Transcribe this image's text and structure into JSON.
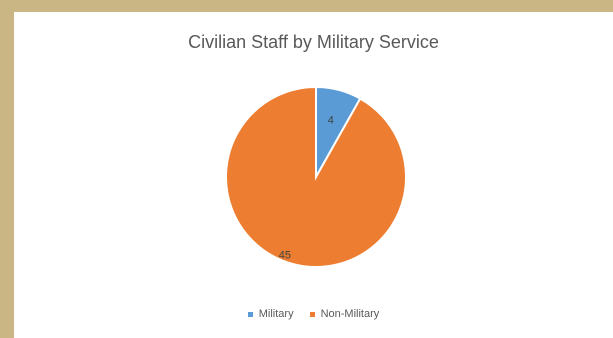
{
  "chart_data": {
    "type": "pie",
    "title": "Civilian Staff by Military Service",
    "categories": [
      "Military",
      "Non-Military"
    ],
    "values": [
      4,
      45
    ],
    "colors": [
      "#5b9bd5",
      "#ed7d31"
    ],
    "data_labels": [
      "4",
      "45"
    ],
    "legend_position": "bottom"
  }
}
